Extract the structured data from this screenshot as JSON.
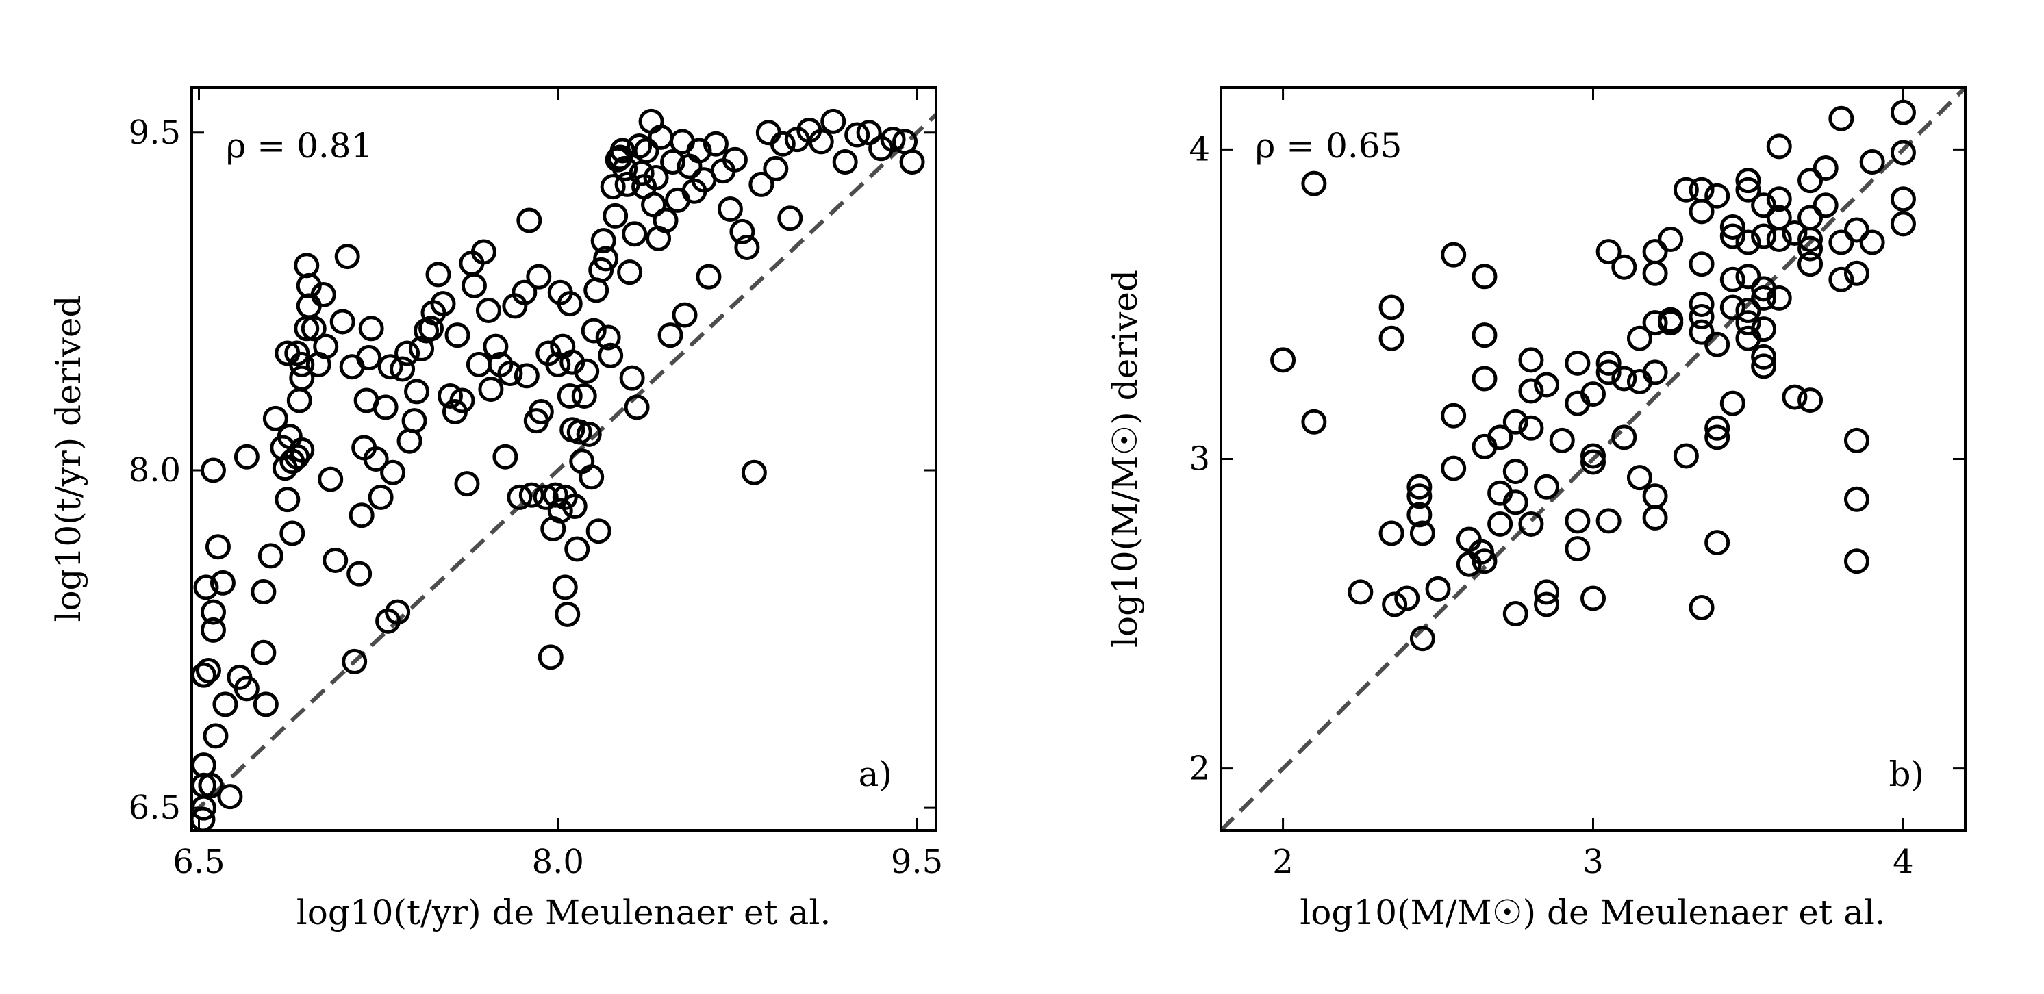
{
  "chart_data": [
    {
      "type": "scatter",
      "panel_label": "a)",
      "annotation": "ρ = 0.81",
      "xlabel": "log10(t/yr) de Meulenaer et al.",
      "ylabel": "log10(t/yr) derived",
      "xlim": [
        6.47,
        9.58
      ],
      "ylim": [
        6.4,
        9.7
      ],
      "xticks": [
        6.5,
        8.0,
        9.5
      ],
      "yticks": [
        6.5,
        8.0,
        9.5
      ],
      "xticklabels": [
        "6.5",
        "8.0",
        "9.5"
      ],
      "yticklabels": [
        "6.5",
        "8.0",
        "9.5"
      ],
      "reference_line": "y = x",
      "points": [
        [
          6.51,
          6.4
        ],
        [
          6.52,
          6.5
        ],
        [
          6.52,
          6.6
        ],
        [
          6.52,
          6.69
        ],
        [
          6.55,
          6.6
        ],
        [
          6.55,
          6.6
        ],
        [
          6.57,
          6.82
        ],
        [
          6.61,
          6.96
        ],
        [
          6.52,
          7.09
        ],
        [
          6.54,
          7.11
        ],
        [
          6.53,
          7.48
        ],
        [
          6.56,
          7.29
        ],
        [
          6.56,
          7.37
        ],
        [
          6.58,
          7.66
        ],
        [
          6.6,
          7.5
        ],
        [
          6.56,
          8.0
        ],
        [
          6.63,
          6.55
        ],
        [
          6.67,
          7.08
        ],
        [
          6.7,
          7.03
        ],
        [
          6.7,
          8.06
        ],
        [
          6.77,
          7.19
        ],
        [
          6.77,
          7.46
        ],
        [
          6.78,
          6.96
        ],
        [
          6.8,
          7.62
        ],
        [
          6.82,
          8.23
        ],
        [
          6.85,
          8.1
        ],
        [
          6.86,
          8.01
        ],
        [
          6.87,
          7.87
        ],
        [
          6.87,
          8.52
        ],
        [
          6.88,
          8.15
        ],
        [
          6.89,
          7.72
        ],
        [
          6.89,
          8.04
        ],
        [
          6.91,
          8.06
        ],
        [
          6.91,
          8.52
        ],
        [
          6.92,
          8.31
        ],
        [
          6.93,
          8.09
        ],
        [
          6.93,
          8.41
        ],
        [
          6.93,
          8.47
        ],
        [
          6.95,
          8.63
        ],
        [
          6.95,
          8.91
        ],
        [
          6.96,
          8.82
        ],
        [
          6.96,
          8.73
        ],
        [
          6.98,
          8.63
        ],
        [
          7.0,
          8.47
        ],
        [
          7.02,
          8.78
        ],
        [
          7.03,
          8.55
        ],
        [
          7.05,
          7.96
        ],
        [
          7.07,
          7.6
        ],
        [
          7.1,
          8.66
        ],
        [
          7.12,
          8.95
        ],
        [
          7.14,
          8.46
        ],
        [
          7.15,
          7.15
        ],
        [
          7.17,
          7.54
        ],
        [
          7.18,
          7.8
        ],
        [
          7.19,
          8.1
        ],
        [
          7.2,
          8.31
        ],
        [
          7.21,
          8.5
        ],
        [
          7.22,
          8.63
        ],
        [
          7.24,
          8.05
        ],
        [
          7.26,
          7.88
        ],
        [
          7.28,
          8.28
        ],
        [
          7.29,
          7.33
        ],
        [
          7.3,
          8.46
        ],
        [
          7.31,
          7.99
        ],
        [
          7.33,
          7.37
        ],
        [
          7.35,
          8.45
        ],
        [
          7.37,
          8.52
        ],
        [
          7.38,
          8.13
        ],
        [
          7.4,
          8.22
        ],
        [
          7.41,
          8.35
        ],
        [
          7.43,
          8.54
        ],
        [
          7.45,
          8.62
        ],
        [
          7.47,
          8.63
        ],
        [
          7.48,
          8.7
        ],
        [
          7.5,
          8.87
        ],
        [
          7.52,
          8.74
        ],
        [
          7.55,
          8.33
        ],
        [
          7.57,
          8.26
        ],
        [
          7.58,
          8.6
        ],
        [
          7.6,
          8.31
        ],
        [
          7.62,
          7.94
        ],
        [
          7.64,
          8.92
        ],
        [
          7.65,
          8.82
        ],
        [
          7.67,
          8.47
        ],
        [
          7.69,
          8.97
        ],
        [
          7.71,
          8.71
        ],
        [
          7.72,
          8.36
        ],
        [
          7.74,
          8.55
        ],
        [
          7.76,
          8.47
        ],
        [
          7.78,
          8.06
        ],
        [
          7.8,
          8.43
        ],
        [
          7.82,
          8.73
        ],
        [
          7.84,
          7.88
        ],
        [
          7.86,
          8.79
        ],
        [
          7.87,
          8.42
        ],
        [
          7.88,
          9.11
        ],
        [
          7.89,
          7.89
        ],
        [
          7.91,
          8.22
        ],
        [
          7.92,
          8.86
        ],
        [
          7.93,
          8.26
        ],
        [
          7.95,
          7.88
        ],
        [
          7.96,
          8.52
        ],
        [
          7.97,
          7.17
        ],
        [
          7.98,
          7.74
        ],
        [
          7.99,
          7.89
        ],
        [
          8.0,
          8.47
        ],
        [
          8.01,
          8.79
        ],
        [
          8.01,
          7.82
        ],
        [
          8.02,
          8.55
        ],
        [
          8.03,
          7.88
        ],
        [
          8.03,
          7.48
        ],
        [
          8.04,
          7.36
        ],
        [
          8.05,
          8.74
        ],
        [
          8.05,
          8.33
        ],
        [
          8.06,
          8.18
        ],
        [
          8.06,
          8.48
        ],
        [
          8.07,
          7.84
        ],
        [
          8.08,
          7.65
        ],
        [
          8.09,
          8.17
        ],
        [
          8.1,
          8.04
        ],
        [
          8.11,
          8.33
        ],
        [
          8.12,
          8.44
        ],
        [
          8.13,
          8.16
        ],
        [
          8.14,
          7.97
        ],
        [
          8.15,
          8.62
        ],
        [
          8.16,
          8.8
        ],
        [
          8.17,
          7.73
        ],
        [
          8.18,
          8.89
        ],
        [
          8.19,
          9.02
        ],
        [
          8.2,
          8.94
        ],
        [
          8.21,
          8.59
        ],
        [
          8.22,
          8.51
        ],
        [
          8.23,
          9.26
        ],
        [
          8.24,
          9.13
        ],
        [
          8.25,
          9.38
        ],
        [
          8.26,
          9.39
        ],
        [
          8.27,
          9.42
        ],
        [
          8.28,
          9.34
        ],
        [
          8.29,
          9.27
        ],
        [
          8.3,
          8.88
        ],
        [
          8.31,
          8.41
        ],
        [
          8.32,
          9.05
        ],
        [
          8.33,
          8.28
        ],
        [
          8.34,
          9.44
        ],
        [
          8.35,
          9.32
        ],
        [
          8.36,
          9.26
        ],
        [
          8.37,
          9.42
        ],
        [
          8.39,
          9.55
        ],
        [
          8.4,
          9.18
        ],
        [
          8.41,
          9.3
        ],
        [
          8.42,
          9.03
        ],
        [
          8.43,
          9.48
        ],
        [
          8.45,
          9.11
        ],
        [
          8.47,
          8.6
        ],
        [
          8.48,
          9.37
        ],
        [
          8.5,
          9.2
        ],
        [
          8.52,
          9.46
        ],
        [
          8.53,
          8.69
        ],
        [
          8.55,
          9.35
        ],
        [
          8.57,
          9.24
        ],
        [
          8.59,
          9.42
        ],
        [
          8.61,
          9.29
        ],
        [
          8.63,
          8.86
        ],
        [
          8.66,
          9.45
        ],
        [
          8.69,
          9.33
        ],
        [
          8.72,
          9.16
        ],
        [
          8.74,
          9.38
        ],
        [
          8.77,
          9.06
        ],
        [
          8.79,
          8.99
        ],
        [
          8.82,
          7.99
        ],
        [
          8.85,
          9.27
        ],
        [
          8.88,
          9.5
        ],
        [
          8.91,
          9.34
        ],
        [
          8.94,
          9.45
        ],
        [
          8.97,
          9.12
        ],
        [
          9.0,
          9.47
        ],
        [
          9.05,
          9.51
        ],
        [
          9.1,
          9.46
        ],
        [
          9.15,
          9.55
        ],
        [
          9.2,
          9.37
        ],
        [
          9.25,
          9.49
        ],
        [
          9.3,
          9.5
        ],
        [
          9.35,
          9.43
        ],
        [
          9.4,
          9.47
        ],
        [
          9.45,
          9.46
        ],
        [
          9.48,
          9.37
        ]
      ]
    },
    {
      "type": "scatter",
      "panel_label": "b)",
      "annotation": "ρ = 0.65",
      "xlabel": "log10(M/M☉) de Meulenaer et al.",
      "ylabel": "log10(M/M☉) derived",
      "xlim": [
        1.8,
        4.2
      ],
      "ylim": [
        1.8,
        4.2
      ],
      "xticks": [
        2,
        3,
        4
      ],
      "yticks": [
        2,
        3,
        4
      ],
      "xticklabels": [
        "2",
        "3",
        "4"
      ],
      "yticklabels": [
        "2",
        "3",
        "4"
      ],
      "reference_line": "y = x",
      "points": [
        [
          2.0,
          3.32
        ],
        [
          2.1,
          3.89
        ],
        [
          2.1,
          3.12
        ],
        [
          2.25,
          2.57
        ],
        [
          2.35,
          2.76
        ],
        [
          2.35,
          3.39
        ],
        [
          2.35,
          3.49
        ],
        [
          2.36,
          2.53
        ],
        [
          2.4,
          2.55
        ],
        [
          2.44,
          2.88
        ],
        [
          2.44,
          2.82
        ],
        [
          2.44,
          2.91
        ],
        [
          2.45,
          2.42
        ],
        [
          2.45,
          2.76
        ],
        [
          2.5,
          2.58
        ],
        [
          2.55,
          2.97
        ],
        [
          2.55,
          3.14
        ],
        [
          2.55,
          3.66
        ],
        [
          2.6,
          2.74
        ],
        [
          2.6,
          2.66
        ],
        [
          2.64,
          2.7
        ],
        [
          2.65,
          2.67
        ],
        [
          2.65,
          3.04
        ],
        [
          2.65,
          3.26
        ],
        [
          2.65,
          3.4
        ],
        [
          2.65,
          3.59
        ],
        [
          2.7,
          2.79
        ],
        [
          2.7,
          2.89
        ],
        [
          2.7,
          3.07
        ],
        [
          2.75,
          2.5
        ],
        [
          2.75,
          2.86
        ],
        [
          2.75,
          2.96
        ],
        [
          2.75,
          3.12
        ],
        [
          2.8,
          2.79
        ],
        [
          2.8,
          3.1
        ],
        [
          2.8,
          3.22
        ],
        [
          2.8,
          3.32
        ],
        [
          2.85,
          2.53
        ],
        [
          2.85,
          2.57
        ],
        [
          2.85,
          2.91
        ],
        [
          2.85,
          3.24
        ],
        [
          2.9,
          3.06
        ],
        [
          2.95,
          2.71
        ],
        [
          2.95,
          2.8
        ],
        [
          2.95,
          3.18
        ],
        [
          2.95,
          3.31
        ],
        [
          3.0,
          2.55
        ],
        [
          3.0,
          2.99
        ],
        [
          3.0,
          3.01
        ],
        [
          3.0,
          3.21
        ],
        [
          3.05,
          2.8
        ],
        [
          3.05,
          3.28
        ],
        [
          3.05,
          3.31
        ],
        [
          3.05,
          3.67
        ],
        [
          3.1,
          3.07
        ],
        [
          3.1,
          3.26
        ],
        [
          3.1,
          3.62
        ],
        [
          3.15,
          2.94
        ],
        [
          3.15,
          3.25
        ],
        [
          3.15,
          3.39
        ],
        [
          3.2,
          2.81
        ],
        [
          3.2,
          2.88
        ],
        [
          3.2,
          3.28
        ],
        [
          3.2,
          3.44
        ],
        [
          3.2,
          3.6
        ],
        [
          3.2,
          3.67
        ],
        [
          3.25,
          3.44
        ],
        [
          3.25,
          3.45
        ],
        [
          3.25,
          3.71
        ],
        [
          3.3,
          3.01
        ],
        [
          3.3,
          3.87
        ],
        [
          3.35,
          2.52
        ],
        [
          3.35,
          3.41
        ],
        [
          3.35,
          3.46
        ],
        [
          3.35,
          3.5
        ],
        [
          3.35,
          3.63
        ],
        [
          3.35,
          3.8
        ],
        [
          3.35,
          3.87
        ],
        [
          3.4,
          2.73
        ],
        [
          3.4,
          3.07
        ],
        [
          3.4,
          3.1
        ],
        [
          3.4,
          3.37
        ],
        [
          3.4,
          3.85
        ],
        [
          3.45,
          3.18
        ],
        [
          3.45,
          3.49
        ],
        [
          3.45,
          3.58
        ],
        [
          3.45,
          3.72
        ],
        [
          3.45,
          3.75
        ],
        [
          3.5,
          3.39
        ],
        [
          3.5,
          3.44
        ],
        [
          3.5,
          3.48
        ],
        [
          3.5,
          3.59
        ],
        [
          3.5,
          3.7
        ],
        [
          3.5,
          3.87
        ],
        [
          3.5,
          3.9
        ],
        [
          3.55,
          3.3
        ],
        [
          3.55,
          3.33
        ],
        [
          3.55,
          3.42
        ],
        [
          3.55,
          3.52
        ],
        [
          3.55,
          3.55
        ],
        [
          3.55,
          3.72
        ],
        [
          3.55,
          3.82
        ],
        [
          3.6,
          3.52
        ],
        [
          3.6,
          3.71
        ],
        [
          3.6,
          3.78
        ],
        [
          3.6,
          3.84
        ],
        [
          3.6,
          4.01
        ],
        [
          3.65,
          3.2
        ],
        [
          3.65,
          3.73
        ],
        [
          3.7,
          3.19
        ],
        [
          3.7,
          3.63
        ],
        [
          3.7,
          3.68
        ],
        [
          3.7,
          3.71
        ],
        [
          3.7,
          3.78
        ],
        [
          3.7,
          3.9
        ],
        [
          3.75,
          3.82
        ],
        [
          3.75,
          3.94
        ],
        [
          3.8,
          3.58
        ],
        [
          3.8,
          3.7
        ],
        [
          3.8,
          4.1
        ],
        [
          3.85,
          2.67
        ],
        [
          3.85,
          2.87
        ],
        [
          3.85,
          3.06
        ],
        [
          3.85,
          3.6
        ],
        [
          3.85,
          3.74
        ],
        [
          3.9,
          3.7
        ],
        [
          3.9,
          3.96
        ],
        [
          4.0,
          3.76
        ],
        [
          4.0,
          3.84
        ],
        [
          4.0,
          3.99
        ],
        [
          4.0,
          4.12
        ]
      ]
    }
  ]
}
